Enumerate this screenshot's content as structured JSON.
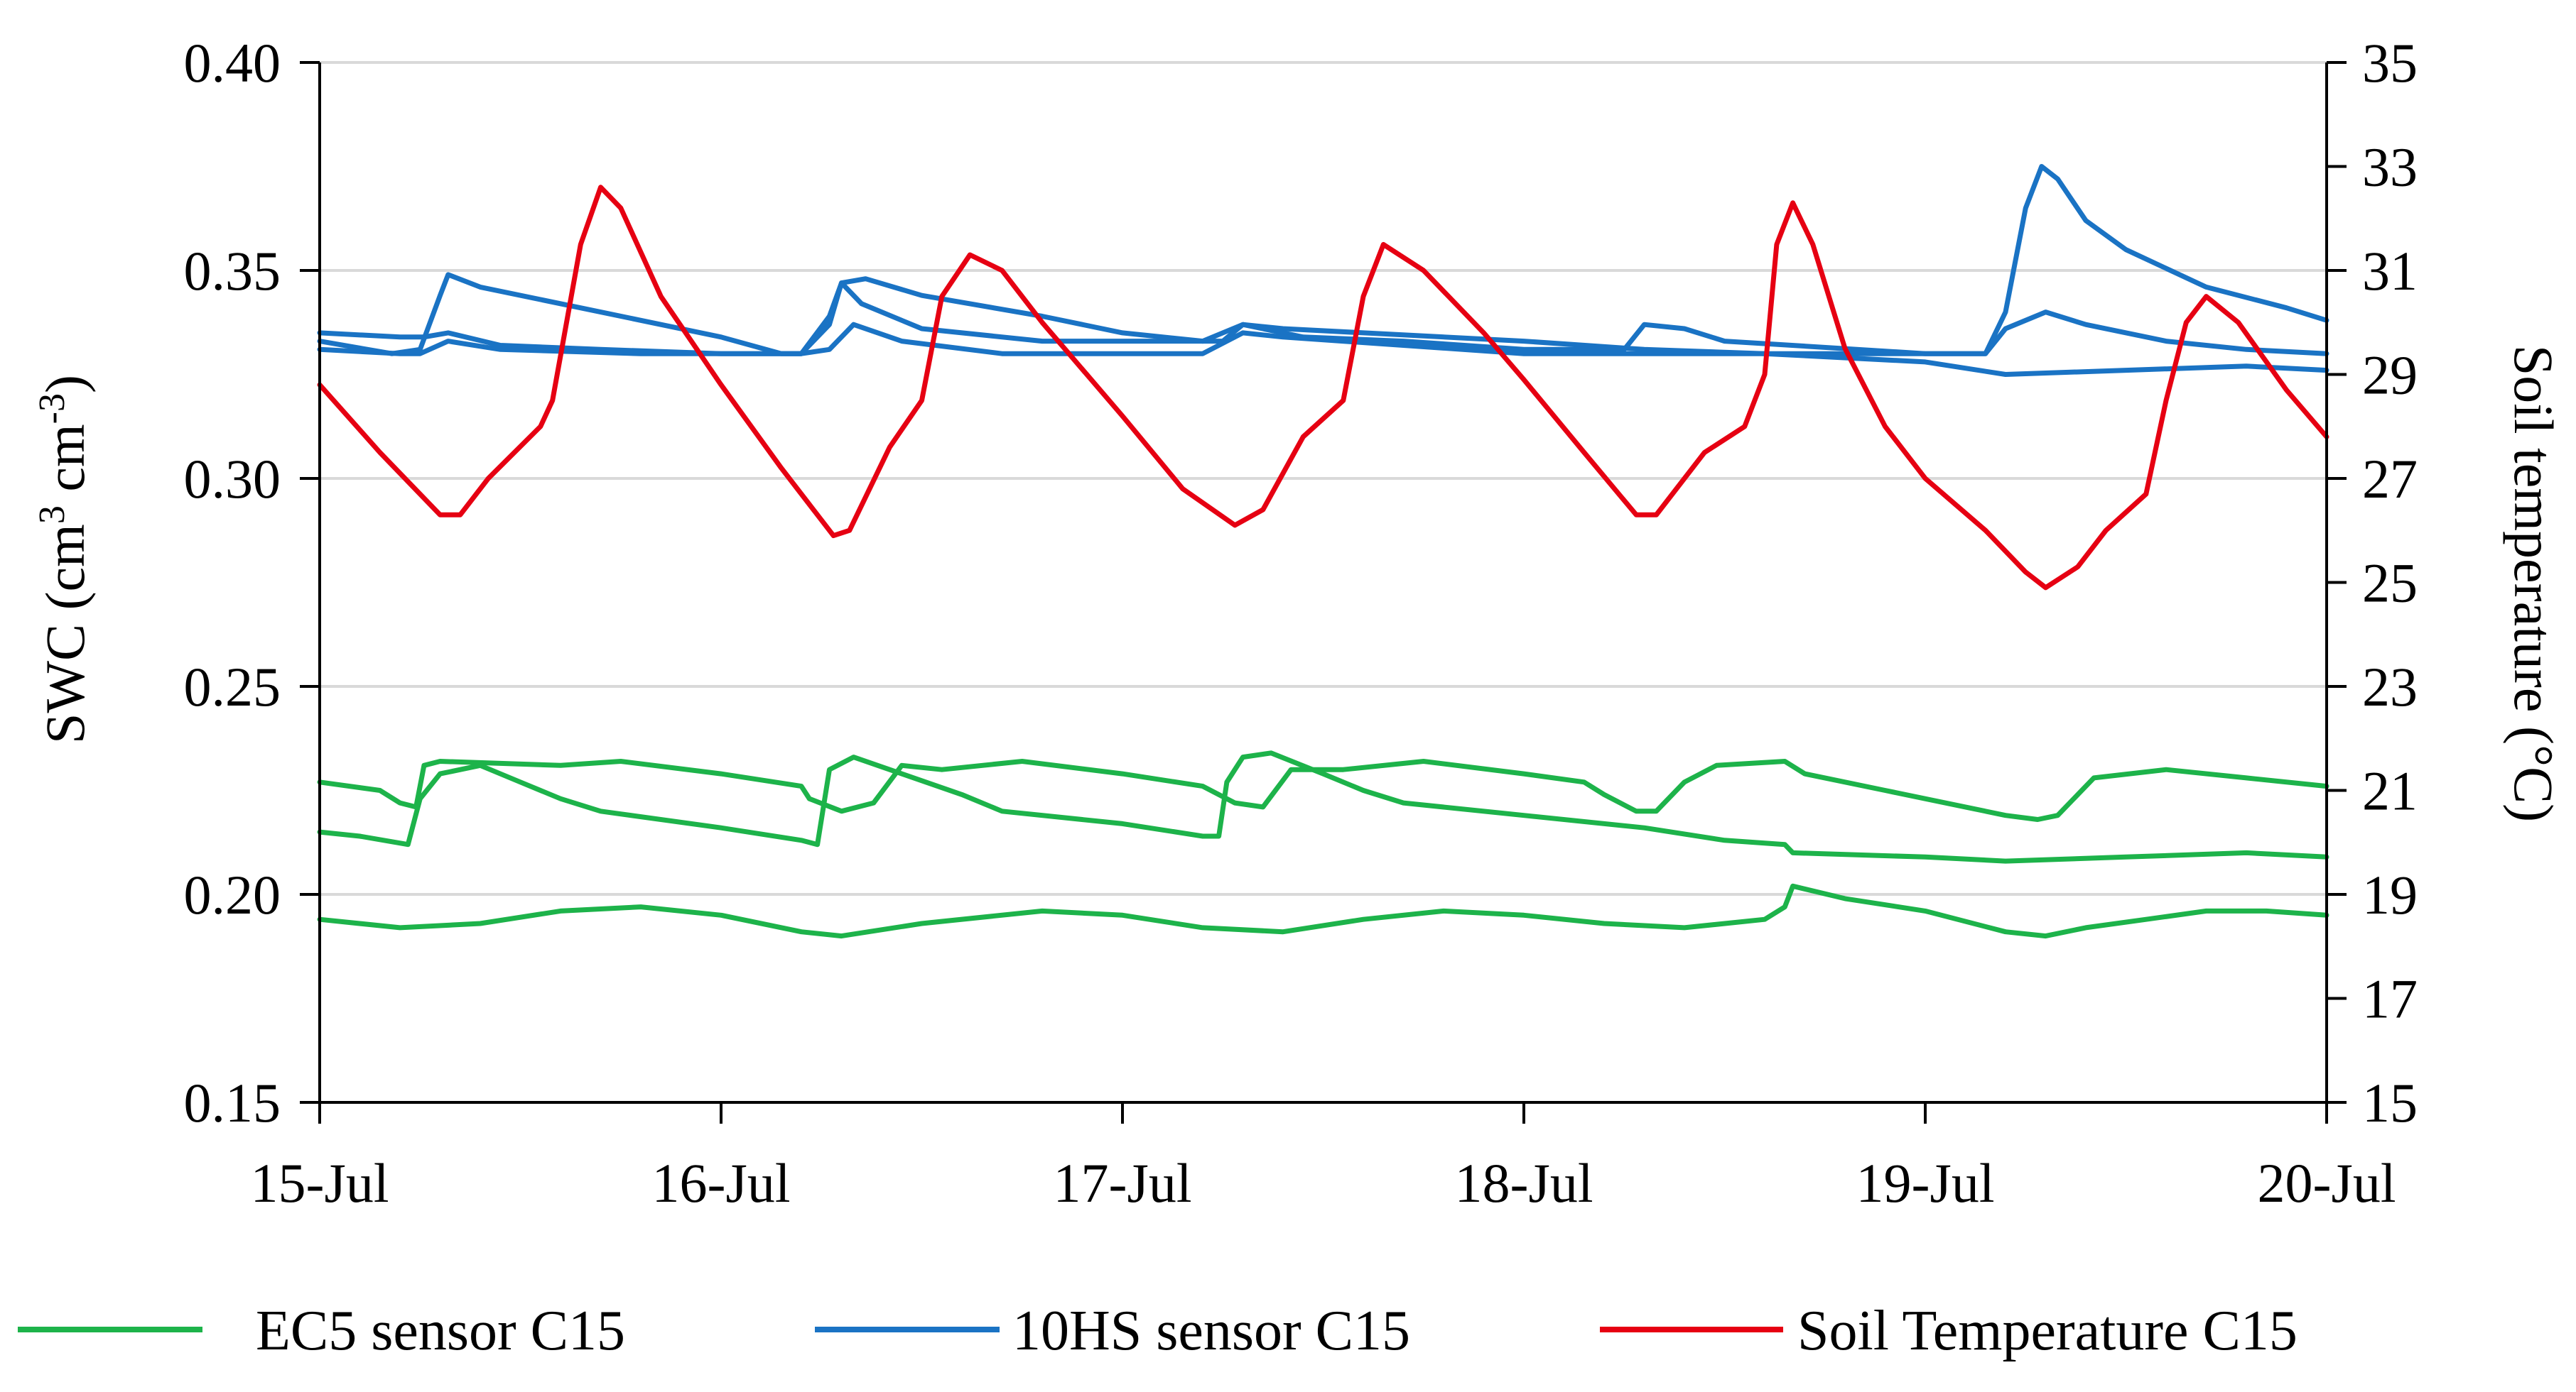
{
  "chart_data": {
    "type": "line",
    "title": "",
    "x_type": "date",
    "xlabel": "",
    "categories": [
      "15-Jul",
      "16-Jul",
      "17-Jul",
      "18-Jul",
      "19-Jul",
      "20-Jul"
    ],
    "xlim": [
      0,
      5
    ],
    "ylabel_left": {
      "prefix": "SWC (cm",
      "sup1": "3",
      "mid": " cm",
      "sup2": "-3",
      "suffix": ")"
    },
    "ylabel_right": "Soil temperature (°C)",
    "ylim_left": [
      0.15,
      0.4
    ],
    "ylim_right": [
      15,
      35
    ],
    "yticks_left": [
      "0.40",
      "0.35",
      "0.30",
      "0.25",
      "0.20",
      "0.15"
    ],
    "yticks_right": [
      "35",
      "33",
      "31",
      "29",
      "27",
      "25",
      "23",
      "21",
      "19",
      "17",
      "15"
    ],
    "grid": "horizontal",
    "legend_position": "bottom",
    "legend": [
      {
        "label": "EC5 sensor C15",
        "color": "#1db34a"
      },
      {
        "label": "10HS sensor C15",
        "color": "#1a73c4"
      },
      {
        "label": "Soil Temperature C15",
        "color": "#e60012"
      }
    ],
    "series": [
      {
        "name": "EC5 sensor C15 (a)",
        "legend_label": "EC5 sensor C15",
        "axis": "left",
        "color": "#1db34a",
        "points": [
          [
            0,
            0.227
          ],
          [
            0.15,
            0.225
          ],
          [
            0.2,
            0.222
          ],
          [
            0.24,
            0.221
          ],
          [
            0.26,
            0.231
          ],
          [
            0.3,
            0.232
          ],
          [
            0.6,
            0.231
          ],
          [
            0.75,
            0.232
          ],
          [
            1.0,
            0.229
          ],
          [
            1.2,
            0.226
          ],
          [
            1.22,
            0.223
          ],
          [
            1.3,
            0.22
          ],
          [
            1.38,
            0.222
          ],
          [
            1.45,
            0.231
          ],
          [
            1.55,
            0.23
          ],
          [
            1.75,
            0.232
          ],
          [
            2.0,
            0.229
          ],
          [
            2.2,
            0.226
          ],
          [
            2.28,
            0.222
          ],
          [
            2.35,
            0.221
          ],
          [
            2.42,
            0.23
          ],
          [
            2.55,
            0.23
          ],
          [
            2.75,
            0.232
          ],
          [
            3.0,
            0.229
          ],
          [
            3.15,
            0.227
          ],
          [
            3.2,
            0.224
          ],
          [
            3.28,
            0.22
          ],
          [
            3.33,
            0.22
          ],
          [
            3.4,
            0.227
          ],
          [
            3.48,
            0.231
          ],
          [
            3.65,
            0.232
          ],
          [
            3.7,
            0.229
          ],
          [
            3.9,
            0.225
          ],
          [
            4.1,
            0.221
          ],
          [
            4.2,
            0.219
          ],
          [
            4.28,
            0.218
          ],
          [
            4.33,
            0.219
          ],
          [
            4.42,
            0.228
          ],
          [
            4.6,
            0.23
          ],
          [
            4.8,
            0.228
          ],
          [
            5.0,
            0.226
          ]
        ]
      },
      {
        "name": "EC5 sensor C15 (b)",
        "legend_label": "EC5 sensor C15",
        "axis": "left",
        "color": "#1db34a",
        "points": [
          [
            0,
            0.215
          ],
          [
            0.1,
            0.214
          ],
          [
            0.22,
            0.212
          ],
          [
            0.25,
            0.223
          ],
          [
            0.3,
            0.229
          ],
          [
            0.4,
            0.231
          ],
          [
            0.5,
            0.227
          ],
          [
            0.6,
            0.223
          ],
          [
            0.7,
            0.22
          ],
          [
            1.0,
            0.216
          ],
          [
            1.2,
            0.213
          ],
          [
            1.24,
            0.212
          ],
          [
            1.27,
            0.23
          ],
          [
            1.33,
            0.233
          ],
          [
            1.45,
            0.229
          ],
          [
            1.6,
            0.224
          ],
          [
            1.7,
            0.22
          ],
          [
            2.0,
            0.217
          ],
          [
            2.2,
            0.214
          ],
          [
            2.24,
            0.214
          ],
          [
            2.26,
            0.227
          ],
          [
            2.3,
            0.233
          ],
          [
            2.37,
            0.234
          ],
          [
            2.5,
            0.229
          ],
          [
            2.6,
            0.225
          ],
          [
            2.7,
            0.222
          ],
          [
            3.0,
            0.219
          ],
          [
            3.3,
            0.216
          ],
          [
            3.5,
            0.213
          ],
          [
            3.65,
            0.212
          ],
          [
            3.67,
            0.21
          ],
          [
            4.0,
            0.209
          ],
          [
            4.2,
            0.208
          ],
          [
            4.5,
            0.209
          ],
          [
            4.8,
            0.21
          ],
          [
            5.0,
            0.209
          ]
        ]
      },
      {
        "name": "EC5 sensor C15 (c)",
        "legend_label": "EC5 sensor C15",
        "axis": "left",
        "color": "#1db34a",
        "points": [
          [
            0,
            0.194
          ],
          [
            0.2,
            0.192
          ],
          [
            0.4,
            0.193
          ],
          [
            0.6,
            0.196
          ],
          [
            0.8,
            0.197
          ],
          [
            1.0,
            0.195
          ],
          [
            1.2,
            0.191
          ],
          [
            1.3,
            0.19
          ],
          [
            1.5,
            0.193
          ],
          [
            1.8,
            0.196
          ],
          [
            2.0,
            0.195
          ],
          [
            2.2,
            0.192
          ],
          [
            2.4,
            0.191
          ],
          [
            2.6,
            0.194
          ],
          [
            2.8,
            0.196
          ],
          [
            3.0,
            0.195
          ],
          [
            3.2,
            0.193
          ],
          [
            3.4,
            0.192
          ],
          [
            3.6,
            0.194
          ],
          [
            3.65,
            0.197
          ],
          [
            3.67,
            0.202
          ],
          [
            3.8,
            0.199
          ],
          [
            4.0,
            0.196
          ],
          [
            4.2,
            0.191
          ],
          [
            4.3,
            0.19
          ],
          [
            4.4,
            0.192
          ],
          [
            4.55,
            0.194
          ],
          [
            4.7,
            0.196
          ],
          [
            4.85,
            0.196
          ],
          [
            5.0,
            0.195
          ]
        ]
      },
      {
        "name": "10HS sensor C15 (a)",
        "legend_label": "10HS sensor C15",
        "axis": "left",
        "color": "#1a73c4",
        "points": [
          [
            0,
            0.333
          ],
          [
            0.18,
            0.33
          ],
          [
            0.25,
            0.331
          ],
          [
            0.3,
            0.344
          ],
          [
            0.32,
            0.349
          ],
          [
            0.4,
            0.346
          ],
          [
            0.7,
            0.34
          ],
          [
            1.0,
            0.334
          ],
          [
            1.15,
            0.33
          ],
          [
            1.2,
            0.33
          ],
          [
            1.27,
            0.339
          ],
          [
            1.3,
            0.347
          ],
          [
            1.36,
            0.348
          ],
          [
            1.5,
            0.344
          ],
          [
            1.8,
            0.339
          ],
          [
            2.0,
            0.335
          ],
          [
            2.2,
            0.333
          ],
          [
            2.3,
            0.337
          ],
          [
            2.4,
            0.336
          ],
          [
            3.0,
            0.333
          ],
          [
            3.3,
            0.331
          ],
          [
            3.6,
            0.33
          ],
          [
            4.0,
            0.328
          ],
          [
            4.2,
            0.325
          ],
          [
            4.5,
            0.326
          ],
          [
            4.8,
            0.327
          ],
          [
            5.0,
            0.326
          ]
        ]
      },
      {
        "name": "10HS sensor C15 (b)",
        "legend_label": "10HS sensor C15",
        "axis": "left",
        "color": "#1a73c4",
        "points": [
          [
            0,
            0.335
          ],
          [
            0.2,
            0.334
          ],
          [
            0.26,
            0.334
          ],
          [
            0.32,
            0.335
          ],
          [
            0.45,
            0.332
          ],
          [
            0.7,
            0.331
          ],
          [
            1.0,
            0.33
          ],
          [
            1.2,
            0.33
          ],
          [
            1.27,
            0.337
          ],
          [
            1.3,
            0.347
          ],
          [
            1.35,
            0.342
          ],
          [
            1.5,
            0.336
          ],
          [
            1.8,
            0.333
          ],
          [
            2.0,
            0.333
          ],
          [
            2.25,
            0.333
          ],
          [
            2.3,
            0.337
          ],
          [
            2.45,
            0.334
          ],
          [
            2.7,
            0.333
          ],
          [
            3.0,
            0.331
          ],
          [
            3.25,
            0.331
          ],
          [
            3.3,
            0.337
          ],
          [
            3.4,
            0.336
          ],
          [
            3.5,
            0.333
          ],
          [
            4.0,
            0.33
          ],
          [
            4.15,
            0.33
          ],
          [
            4.2,
            0.336
          ],
          [
            4.3,
            0.34
          ],
          [
            4.4,
            0.337
          ],
          [
            4.6,
            0.333
          ],
          [
            4.8,
            0.331
          ],
          [
            5.0,
            0.33
          ]
        ]
      },
      {
        "name": "10HS sensor C15 (c)",
        "legend_label": "10HS sensor C15",
        "axis": "left",
        "color": "#1a73c4",
        "points": [
          [
            0,
            0.331
          ],
          [
            0.2,
            0.33
          ],
          [
            0.25,
            0.33
          ],
          [
            0.32,
            0.333
          ],
          [
            0.45,
            0.331
          ],
          [
            0.8,
            0.33
          ],
          [
            1.2,
            0.33
          ],
          [
            1.27,
            0.331
          ],
          [
            1.33,
            0.337
          ],
          [
            1.45,
            0.333
          ],
          [
            1.7,
            0.33
          ],
          [
            2.0,
            0.33
          ],
          [
            2.2,
            0.33
          ],
          [
            2.3,
            0.335
          ],
          [
            2.4,
            0.334
          ],
          [
            2.7,
            0.332
          ],
          [
            3.0,
            0.33
          ],
          [
            3.6,
            0.33
          ],
          [
            4.0,
            0.33
          ],
          [
            4.15,
            0.33
          ],
          [
            4.2,
            0.34
          ],
          [
            4.25,
            0.365
          ],
          [
            4.29,
            0.375
          ],
          [
            4.33,
            0.372
          ],
          [
            4.4,
            0.362
          ],
          [
            4.5,
            0.355
          ],
          [
            4.7,
            0.346
          ],
          [
            4.9,
            0.341
          ],
          [
            5.0,
            0.338
          ]
        ]
      },
      {
        "name": "Soil Temperature C15",
        "legend_label": "Soil Temperature C15",
        "axis": "right",
        "color": "#e60012",
        "points": [
          [
            0,
            28.8
          ],
          [
            0.15,
            27.5
          ],
          [
            0.3,
            26.3
          ],
          [
            0.35,
            26.3
          ],
          [
            0.42,
            27.0
          ],
          [
            0.55,
            28.0
          ],
          [
            0.58,
            28.5
          ],
          [
            0.65,
            31.5
          ],
          [
            0.7,
            32.6
          ],
          [
            0.75,
            32.2
          ],
          [
            0.85,
            30.5
          ],
          [
            1.0,
            28.8
          ],
          [
            1.15,
            27.2
          ],
          [
            1.28,
            25.9
          ],
          [
            1.32,
            26.0
          ],
          [
            1.42,
            27.6
          ],
          [
            1.5,
            28.5
          ],
          [
            1.55,
            30.5
          ],
          [
            1.62,
            31.3
          ],
          [
            1.7,
            31.0
          ],
          [
            1.8,
            30.0
          ],
          [
            2.0,
            28.2
          ],
          [
            2.15,
            26.8
          ],
          [
            2.28,
            26.1
          ],
          [
            2.35,
            26.4
          ],
          [
            2.45,
            27.8
          ],
          [
            2.55,
            28.5
          ],
          [
            2.6,
            30.5
          ],
          [
            2.65,
            31.5
          ],
          [
            2.75,
            31.0
          ],
          [
            2.9,
            29.8
          ],
          [
            3.0,
            28.9
          ],
          [
            3.15,
            27.5
          ],
          [
            3.28,
            26.3
          ],
          [
            3.33,
            26.3
          ],
          [
            3.45,
            27.5
          ],
          [
            3.55,
            28.0
          ],
          [
            3.6,
            29.0
          ],
          [
            3.63,
            31.5
          ],
          [
            3.67,
            32.3
          ],
          [
            3.72,
            31.5
          ],
          [
            3.8,
            29.5
          ],
          [
            3.9,
            28.0
          ],
          [
            4.0,
            27.0
          ],
          [
            4.15,
            26.0
          ],
          [
            4.25,
            25.2
          ],
          [
            4.3,
            24.9
          ],
          [
            4.38,
            25.3
          ],
          [
            4.45,
            26.0
          ],
          [
            4.55,
            26.7
          ],
          [
            4.6,
            28.5
          ],
          [
            4.65,
            30.0
          ],
          [
            4.7,
            30.5
          ],
          [
            4.78,
            30.0
          ],
          [
            4.9,
            28.7
          ],
          [
            5.0,
            27.8
          ]
        ]
      }
    ]
  }
}
